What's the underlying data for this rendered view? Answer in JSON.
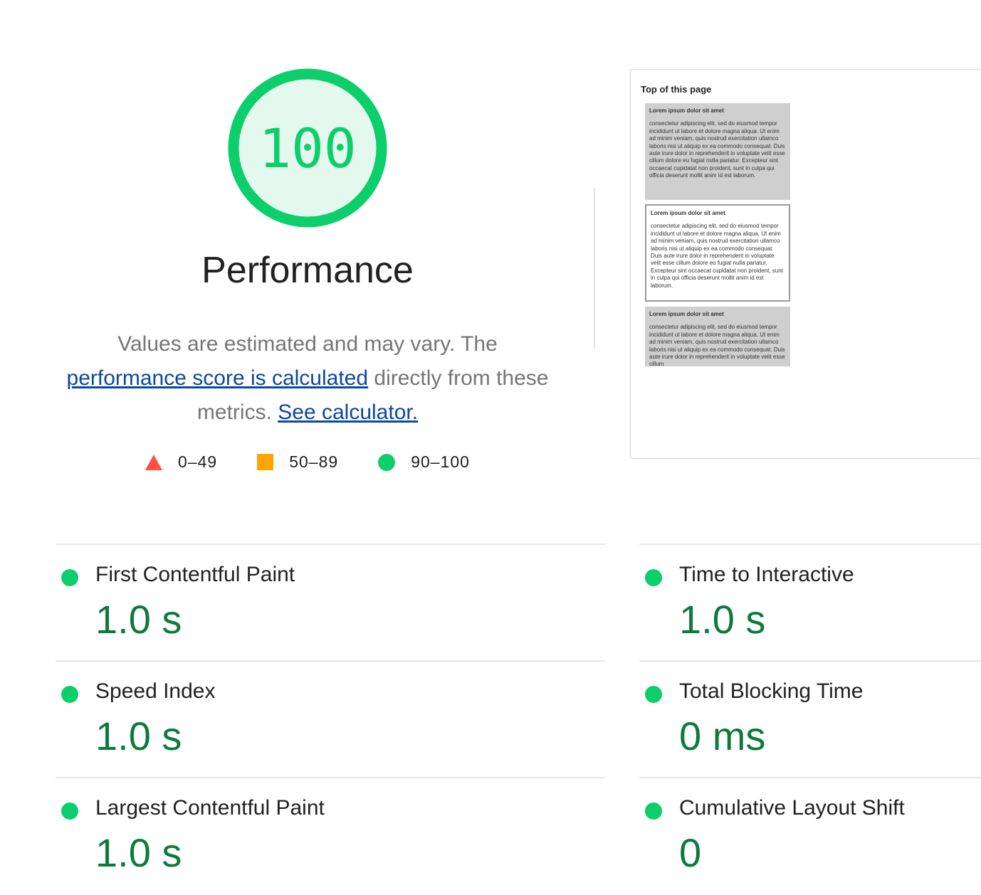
{
  "score": {
    "value": "100",
    "color": "#0cce6b",
    "fraction": 1.0
  },
  "title": "Performance",
  "description": {
    "text1": "Values are estimated and may vary. The ",
    "link1": "performance score is calculated",
    "text2": " directly from these metrics. ",
    "link2": "See calculator."
  },
  "legend": [
    {
      "icon": "triangle-red",
      "label": "0–49",
      "color": "#ff4e42"
    },
    {
      "icon": "square-orange",
      "label": "50–89",
      "color": "#ffa400"
    },
    {
      "icon": "circle-green",
      "label": "90–100",
      "color": "#0cce6b"
    }
  ],
  "screenshot": {
    "heading": "Top of this page",
    "blocks": [
      {
        "title": "Lorem ipsum dolor sit amet",
        "body": "consectetur adipiscing elit, sed do eiusmod tempor incididunt ut labore et dolore magna aliqua. Ut enim ad minim veniam, quis nostrud exercitation ullamco laboris nisi ut aliquip ex ea commodo consequat. Duis aute irure dolor in reprehenderit in voluptate velit esse cillum dolore eu fugiat nulla pariatur. Excepteur sint occaecat cupidatat non proident, sunt in culpa qui officia deserunt mollit anim id est laborum."
      },
      {
        "title": "Lorem ipsum dolor sit amet",
        "body": "consectetur adipiscing elit, sed do eiusmod tempor incididunt ut labore et dolore magna aliqua. Ut enim ad minim veniam, quis nostrud exercitation ullamco laboris nisi ut aliquip ex ea commodo consequat. Duis aute irure dolor in reprehenderit in voluptate velit esse cillum dolore eu fugiat nulla pariatur. Excepteur sint occaecat cupidatat non proident, sunt in culpa qui officia deserunt mollit anim id est laborum."
      },
      {
        "title": "Lorem ipsum dolor sit amet",
        "body": "consectetur adipiscing elit, sed do eiusmod tempor incididunt ut labore et dolore magna aliqua. Ut enim ad minim veniam, quis nostrud exercitation ullamco laboris nisi ut aliquip ex ea commodo consequat. Duis aute irure dolor in reprehenderit in voluptate velit esse cillum"
      }
    ]
  },
  "metrics": [
    {
      "label": "First Contentful Paint",
      "value": "1.0 s",
      "status": "pass"
    },
    {
      "label": "Time to Interactive",
      "value": "1.0 s",
      "status": "pass"
    },
    {
      "label": "Speed Index",
      "value": "1.0 s",
      "status": "pass"
    },
    {
      "label": "Total Blocking Time",
      "value": "0 ms",
      "status": "pass"
    },
    {
      "label": "Largest Contentful Paint",
      "value": "1.0 s",
      "status": "pass"
    },
    {
      "label": "Cumulative Layout Shift",
      "value": "0",
      "status": "pass"
    }
  ]
}
